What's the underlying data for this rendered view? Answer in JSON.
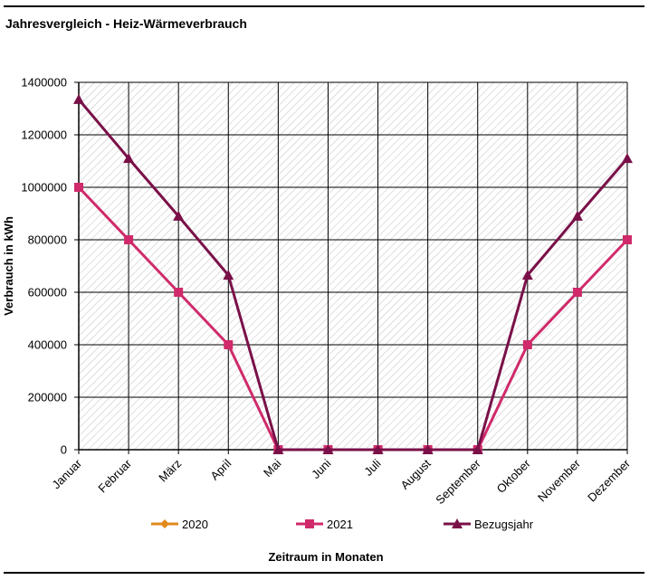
{
  "chart_data": {
    "type": "line",
    "title": "Jahresvergleich - Heiz-Wärmeverbrauch",
    "xlabel": "Zeitraum in Monaten",
    "ylabel": "Verbrauch in kWh",
    "categories": [
      "Januar",
      "Februar",
      "März",
      "April",
      "Mai",
      "Juni",
      "Juli",
      "August",
      "September",
      "Oktober",
      "November",
      "Dezember"
    ],
    "yticks": [
      "0",
      "200000",
      "400000",
      "600000",
      "800000",
      "1000000",
      "1200000",
      "1400000"
    ],
    "ylim": [
      0,
      1400000
    ],
    "grid": true,
    "legend_position": "bottom",
    "series": [
      {
        "name": "2020",
        "color": "#E08A1E",
        "marker": "diamond",
        "values": [
          null,
          null,
          null,
          null,
          null,
          null,
          null,
          null,
          null,
          null,
          null,
          null
        ]
      },
      {
        "name": "2021",
        "color": "#D02A6A",
        "marker": "square",
        "values": [
          1000000,
          800000,
          600000,
          400000,
          0,
          0,
          0,
          0,
          0,
          400000,
          600000,
          800000
        ]
      },
      {
        "name": "Bezugsjahr",
        "color": "#7A1048",
        "marker": "triangle",
        "values": [
          1335000,
          1110000,
          890000,
          665000,
          0,
          0,
          0,
          0,
          0,
          665000,
          890000,
          1110000
        ]
      }
    ]
  }
}
